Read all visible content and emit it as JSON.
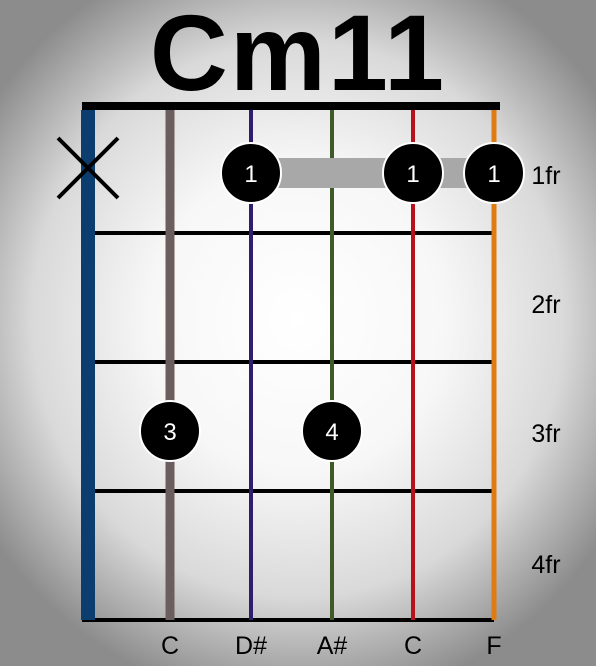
{
  "chord": {
    "name": "Cm11"
  },
  "strings": [
    {
      "index": 0,
      "color": "#0b3d6e",
      "note": "",
      "muted": true
    },
    {
      "index": 1,
      "color": "#6b5e5e",
      "note": "C",
      "muted": false
    },
    {
      "index": 2,
      "color": "#2e1e6b",
      "note": "D#",
      "muted": false
    },
    {
      "index": 3,
      "color": "#3d5a28",
      "note": "A#",
      "muted": false
    },
    {
      "index": 4,
      "color": "#b5121b",
      "note": "C",
      "muted": false
    },
    {
      "index": 5,
      "color": "#e07b12",
      "note": "F",
      "muted": false
    }
  ],
  "frets": [
    "1fr",
    "2fr",
    "3fr",
    "4fr"
  ],
  "barre": {
    "fret": 1,
    "from_string": 2,
    "to_string": 5,
    "color": "#a8a8a8"
  },
  "fingers": [
    {
      "string": 2,
      "fret": 1,
      "finger": "1"
    },
    {
      "string": 4,
      "fret": 1,
      "finger": "1"
    },
    {
      "string": 5,
      "fret": 1,
      "finger": "1"
    },
    {
      "string": 1,
      "fret": 3,
      "finger": "3"
    },
    {
      "string": 3,
      "fret": 3,
      "finger": "4"
    }
  ]
}
